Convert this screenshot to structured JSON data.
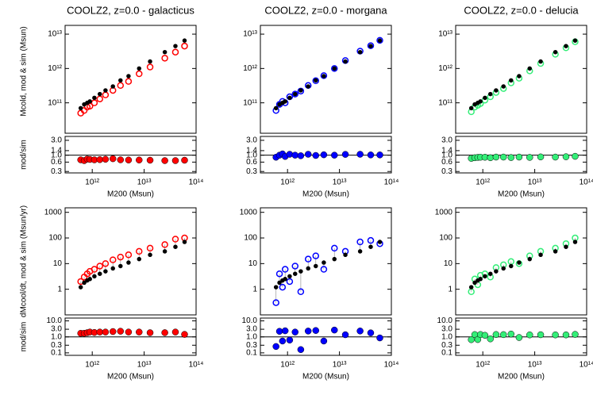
{
  "chart_data": [
    {
      "type": "scatter",
      "title": "COOLZ2, z=0.0 - galacticus",
      "ylabel": "Mcold, mod & sim (Msun)",
      "log_x": true,
      "log_y": true,
      "xlim": [
        300000000000.0,
        100000000000000.0
      ],
      "ylim": [
        13000000000.0,
        18000000000000.0
      ],
      "yticks": [
        {
          "value": 100000000000.0,
          "label": "10¹¹"
        },
        {
          "value": 1000000000000.0,
          "label": "10¹²"
        },
        {
          "value": 10000000000000.0,
          "label": "10¹³"
        }
      ],
      "x": [
        600000000000.0,
        700000000000.0,
        800000000000.0,
        900000000000.0,
        1100000000000.0,
        1400000000000.0,
        1800000000000.0,
        2500000000000.0,
        3500000000000.0,
        5000000000000.0,
        8000000000000.0,
        13000000000000.0,
        25000000000000.0,
        40000000000000.0,
        60000000000000.0
      ],
      "series": [
        {
          "color": "#ff0000",
          "marker": "open",
          "values": [
            50000000000.0,
            60000000000.0,
            75000000000.0,
            80000000000.0,
            100000000000.0,
            130000000000.0,
            170000000000.0,
            230000000000.0,
            320000000000.0,
            420000000000.0,
            700000000000.0,
            1100000000000.0,
            2000000000000.0,
            3000000000000.0,
            4500000000000.0
          ]
        },
        {
          "color": "#000000",
          "marker": "filled",
          "values": [
            70000000000.0,
            90000000000.0,
            100000000000.0,
            110000000000.0,
            140000000000.0,
            180000000000.0,
            230000000000.0,
            300000000000.0,
            450000000000.0,
            600000000000.0,
            1000000000000.0,
            1600000000000.0,
            3000000000000.0,
            4500000000000.0,
            6500000000000.0
          ]
        }
      ]
    },
    {
      "type": "scatter",
      "title": "COOLZ2, z=0.0 - morgana",
      "log_x": true,
      "log_y": true,
      "xlim": [
        300000000000.0,
        100000000000000.0
      ],
      "ylim": [
        13000000000.0,
        18000000000000.0
      ],
      "yticks": [
        {
          "value": 100000000000.0,
          "label": "10¹¹"
        },
        {
          "value": 1000000000000.0,
          "label": "10¹²"
        },
        {
          "value": 10000000000000.0,
          "label": "10¹³"
        }
      ],
      "x": [
        600000000000.0,
        700000000000.0,
        800000000000.0,
        900000000000.0,
        1100000000000.0,
        1400000000000.0,
        1800000000000.0,
        2500000000000.0,
        3500000000000.0,
        5000000000000.0,
        8000000000000.0,
        13000000000000.0,
        25000000000000.0,
        40000000000000.0,
        60000000000000.0
      ],
      "series": [
        {
          "color": "#0000ff",
          "marker": "open",
          "values": [
            60000000000.0,
            90000000000.0,
            110000000000.0,
            100000000000.0,
            150000000000.0,
            180000000000.0,
            220000000000.0,
            320000000000.0,
            440000000000.0,
            620000000000.0,
            1000000000000.0,
            1700000000000.0,
            3200000000000.0,
            4600000000000.0,
            6600000000000.0
          ]
        },
        {
          "color": "#000000",
          "marker": "filled",
          "values": [
            70000000000.0,
            90000000000.0,
            100000000000.0,
            110000000000.0,
            140000000000.0,
            180000000000.0,
            230000000000.0,
            300000000000.0,
            450000000000.0,
            600000000000.0,
            1000000000000.0,
            1600000000000.0,
            3000000000000.0,
            4500000000000.0,
            6500000000000.0
          ]
        }
      ]
    },
    {
      "type": "scatter",
      "title": "COOLZ2, z=0.0 - delucia",
      "log_x": true,
      "log_y": true,
      "xlim": [
        300000000000.0,
        100000000000000.0
      ],
      "ylim": [
        13000000000.0,
        18000000000000.0
      ],
      "yticks": [
        {
          "value": 100000000000.0,
          "label": "10¹¹"
        },
        {
          "value": 1000000000000.0,
          "label": "10¹²"
        },
        {
          "value": 10000000000000.0,
          "label": "10¹³"
        }
      ],
      "x": [
        600000000000.0,
        700000000000.0,
        800000000000.0,
        900000000000.0,
        1100000000000.0,
        1400000000000.0,
        1800000000000.0,
        2500000000000.0,
        3500000000000.0,
        5000000000000.0,
        8000000000000.0,
        13000000000000.0,
        25000000000000.0,
        40000000000000.0,
        60000000000000.0
      ],
      "series": [
        {
          "color": "#33ee77",
          "marker": "open",
          "values": [
            55000000000.0,
            75000000000.0,
            85000000000.0,
            95000000000.0,
            120000000000.0,
            150000000000.0,
            200000000000.0,
            260000000000.0,
            380000000000.0,
            520000000000.0,
            850000000000.0,
            1400000000000.0,
            2600000000000.0,
            4000000000000.0,
            6000000000000.0
          ]
        },
        {
          "color": "#000000",
          "marker": "filled",
          "values": [
            70000000000.0,
            90000000000.0,
            100000000000.0,
            110000000000.0,
            140000000000.0,
            180000000000.0,
            230000000000.0,
            300000000000.0,
            450000000000.0,
            600000000000.0,
            1000000000000.0,
            1600000000000.0,
            3000000000000.0,
            4500000000000.0,
            6500000000000.0
          ]
        }
      ]
    },
    {
      "type": "ratio",
      "ylabel": "mod/sim",
      "xlabel": "M200 (Msun)",
      "log_x": true,
      "log_y": true,
      "color": "#ff0000",
      "reference_line": 1,
      "xlim": [
        300000000000.0,
        100000000000000.0
      ],
      "ylim": [
        0.27,
        4
      ],
      "xticks": [
        {
          "value": 1000000000000.0,
          "label": "10¹²"
        },
        {
          "value": 10000000000000.0,
          "label": "10¹³"
        },
        {
          "value": 100000000000000.0,
          "label": "10¹⁴"
        }
      ],
      "yticks": [
        {
          "value": 0.3,
          "label": "0.3"
        },
        {
          "value": 0.6,
          "label": "0.6"
        },
        {
          "value": 1,
          "label": "1.0"
        },
        {
          "value": 1.4,
          "label": "1.4"
        },
        {
          "value": 3,
          "label": "3.0"
        }
      ],
      "x": [
        600000000000.0,
        700000000000.0,
        800000000000.0,
        900000000000.0,
        1100000000000.0,
        1400000000000.0,
        1800000000000.0,
        2500000000000.0,
        3500000000000.0,
        5000000000000.0,
        8000000000000.0,
        13000000000000.0,
        25000000000000.0,
        40000000000000.0,
        60000000000000.0
      ],
      "values": [
        0.71,
        0.67,
        0.75,
        0.73,
        0.71,
        0.72,
        0.74,
        0.77,
        0.71,
        0.7,
        0.7,
        0.69,
        0.67,
        0.67,
        0.69
      ]
    },
    {
      "type": "ratio",
      "xlabel": "M200 (Msun)",
      "log_x": true,
      "log_y": true,
      "color": "#0000ff",
      "reference_line": 1,
      "xlim": [
        300000000000.0,
        100000000000000.0
      ],
      "ylim": [
        0.27,
        4
      ],
      "xticks": [
        {
          "value": 1000000000000.0,
          "label": "10¹²"
        },
        {
          "value": 10000000000000.0,
          "label": "10¹³"
        },
        {
          "value": 100000000000000.0,
          "label": "10¹⁴"
        }
      ],
      "yticks": [
        {
          "value": 0.3,
          "label": "0.3"
        },
        {
          "value": 0.6,
          "label": "0.6"
        },
        {
          "value": 1,
          "label": "1.0"
        },
        {
          "value": 1.4,
          "label": "1.4"
        },
        {
          "value": 3,
          "label": "3.0"
        }
      ],
      "x": [
        600000000000.0,
        700000000000.0,
        800000000000.0,
        900000000000.0,
        1100000000000.0,
        1400000000000.0,
        1800000000000.0,
        2500000000000.0,
        3500000000000.0,
        5000000000000.0,
        8000000000000.0,
        13000000000000.0,
        25000000000000.0,
        40000000000000.0,
        60000000000000.0
      ],
      "values": [
        0.86,
        1,
        1.1,
        0.91,
        1.07,
        1,
        0.96,
        1.07,
        0.98,
        1.03,
        1,
        1.06,
        1.07,
        1.02,
        1.02
      ]
    },
    {
      "type": "ratio",
      "xlabel": "M200 (Msun)",
      "log_x": true,
      "log_y": true,
      "color": "#33ee77",
      "reference_line": 1,
      "xlim": [
        300000000000.0,
        100000000000000.0
      ],
      "ylim": [
        0.27,
        4
      ],
      "xticks": [
        {
          "value": 1000000000000.0,
          "label": "10¹²"
        },
        {
          "value": 10000000000000.0,
          "label": "10¹³"
        },
        {
          "value": 100000000000000.0,
          "label": "10¹⁴"
        }
      ],
      "yticks": [
        {
          "value": 0.3,
          "label": "0.3"
        },
        {
          "value": 0.6,
          "label": "0.6"
        },
        {
          "value": 1,
          "label": "1.0"
        },
        {
          "value": 1.4,
          "label": "1.4"
        },
        {
          "value": 3,
          "label": "3.0"
        }
      ],
      "x": [
        600000000000.0,
        700000000000.0,
        800000000000.0,
        900000000000.0,
        1100000000000.0,
        1400000000000.0,
        1800000000000.0,
        2500000000000.0,
        3500000000000.0,
        5000000000000.0,
        8000000000000.0,
        13000000000000.0,
        25000000000000.0,
        40000000000000.0,
        60000000000000.0
      ],
      "values": [
        0.79,
        0.83,
        0.85,
        0.86,
        0.86,
        0.83,
        0.87,
        0.87,
        0.84,
        0.87,
        0.85,
        0.88,
        0.87,
        0.89,
        0.92
      ]
    },
    {
      "type": "scatter",
      "ylabel": "dMcool/dt, mod & sim (Msun/yr)",
      "log_x": true,
      "log_y": true,
      "connectors": true,
      "xlim": [
        300000000000.0,
        100000000000000.0
      ],
      "ylim": [
        0.1,
        1500
      ],
      "yticks": [
        1,
        10,
        100,
        1000
      ],
      "x": [
        600000000000.0,
        700000000000.0,
        800000000000.0,
        900000000000.0,
        1100000000000.0,
        1400000000000.0,
        1800000000000.0,
        2500000000000.0,
        3500000000000.0,
        5000000000000.0,
        8000000000000.0,
        13000000000000.0,
        25000000000000.0,
        40000000000000.0,
        60000000000000.0
      ],
      "series": [
        {
          "color": "#ff0000",
          "marker": "open",
          "values": [
            2,
            3,
            4,
            5,
            6,
            8,
            10,
            14,
            18,
            22,
            30,
            40,
            55,
            90,
            100
          ]
        },
        {
          "color": "#000000",
          "marker": "filled",
          "values": [
            1.2,
            1.8,
            2.2,
            2.5,
            3.2,
            4,
            5,
            6.5,
            8,
            11,
            15,
            22,
            30,
            45,
            70
          ]
        }
      ]
    },
    {
      "type": "scatter",
      "log_x": true,
      "log_y": true,
      "connectors": true,
      "xlim": [
        300000000000.0,
        100000000000000.0
      ],
      "ylim": [
        0.1,
        1500
      ],
      "yticks": [
        1,
        10,
        100,
        1000
      ],
      "x": [
        600000000000.0,
        700000000000.0,
        800000000000.0,
        900000000000.0,
        1100000000000.0,
        1400000000000.0,
        1800000000000.0,
        2500000000000.0,
        3500000000000.0,
        5000000000000.0,
        8000000000000.0,
        13000000000000.0,
        25000000000000.0,
        40000000000000.0,
        60000000000000.0
      ],
      "series": [
        {
          "color": "#0000ff",
          "marker": "open",
          "values": [
            0.3,
            4,
            1.2,
            6,
            2,
            8,
            0.8,
            15,
            20,
            6,
            40,
            30,
            70,
            80,
            60
          ]
        },
        {
          "color": "#000000",
          "marker": "filled",
          "values": [
            1.2,
            1.8,
            2.2,
            2.5,
            3.2,
            4,
            5,
            6.5,
            8,
            11,
            15,
            22,
            30,
            45,
            70
          ]
        }
      ]
    },
    {
      "type": "scatter",
      "log_x": true,
      "log_y": true,
      "connectors": true,
      "xlim": [
        300000000000.0,
        100000000000000.0
      ],
      "ylim": [
        0.1,
        1500
      ],
      "yticks": [
        1,
        10,
        100,
        1000
      ],
      "x": [
        600000000000.0,
        700000000000.0,
        800000000000.0,
        900000000000.0,
        1100000000000.0,
        1400000000000.0,
        1800000000000.0,
        2500000000000.0,
        3500000000000.0,
        5000000000000.0,
        8000000000000.0,
        13000000000000.0,
        25000000000000.0,
        40000000000000.0,
        60000000000000.0
      ],
      "series": [
        {
          "color": "#33ee77",
          "marker": "open",
          "values": [
            0.8,
            2.5,
            1.5,
            3.5,
            4,
            3,
            7,
            9,
            12,
            10,
            20,
            30,
            40,
            60,
            100
          ]
        },
        {
          "color": "#000000",
          "marker": "filled",
          "values": [
            1.2,
            1.8,
            2.2,
            2.5,
            3.2,
            4,
            5,
            6.5,
            8,
            11,
            15,
            22,
            30,
            45,
            70
          ]
        }
      ]
    },
    {
      "type": "ratio",
      "ylabel": "mod/sim",
      "xlabel": "M200 (Msun)",
      "log_x": true,
      "log_y": true,
      "color": "#ff0000",
      "reference_line": 1,
      "xlim": [
        300000000000.0,
        100000000000000.0
      ],
      "ylim": [
        0.07,
        15
      ],
      "xticks": [
        {
          "value": 1000000000000.0,
          "label": "10¹²"
        },
        {
          "value": 10000000000000.0,
          "label": "10¹³"
        },
        {
          "value": 100000000000000.0,
          "label": "10¹⁴"
        }
      ],
      "yticks": [
        0.1,
        0.3,
        {
          "value": 1,
          "label": "1.0"
        },
        {
          "value": 3,
          "label": "3.0"
        },
        {
          "value": 10,
          "label": "10.0"
        }
      ],
      "x": [
        600000000000.0,
        700000000000.0,
        800000000000.0,
        900000000000.0,
        1100000000000.0,
        1400000000000.0,
        1800000000000.0,
        2500000000000.0,
        3500000000000.0,
        5000000000000.0,
        8000000000000.0,
        13000000000000.0,
        25000000000000.0,
        40000000000000.0,
        60000000000000.0
      ],
      "values": [
        1.67,
        1.67,
        1.82,
        2,
        1.88,
        2,
        2,
        2.15,
        2.25,
        2,
        2,
        1.82,
        1.83,
        2,
        1.43
      ]
    },
    {
      "type": "ratio",
      "xlabel": "M200 (Msun)",
      "log_x": true,
      "log_y": true,
      "color": "#0000ff",
      "reference_line": 1,
      "xlim": [
        300000000000.0,
        100000000000000.0
      ],
      "ylim": [
        0.07,
        15
      ],
      "xticks": [
        {
          "value": 1000000000000.0,
          "label": "10¹²"
        },
        {
          "value": 10000000000000.0,
          "label": "10¹³"
        },
        {
          "value": 100000000000000.0,
          "label": "10¹⁴"
        }
      ],
      "yticks": [
        0.1,
        0.3,
        {
          "value": 1,
          "label": "1.0"
        },
        {
          "value": 3,
          "label": "3.0"
        },
        {
          "value": 10,
          "label": "10.0"
        }
      ],
      "x": [
        600000000000.0,
        700000000000.0,
        800000000000.0,
        900000000000.0,
        1100000000000.0,
        1400000000000.0,
        1800000000000.0,
        2500000000000.0,
        3500000000000.0,
        5000000000000.0,
        8000000000000.0,
        13000000000000.0,
        25000000000000.0,
        40000000000000.0,
        60000000000000.0
      ],
      "values": [
        0.25,
        2.22,
        0.55,
        2.4,
        0.63,
        2,
        0.16,
        2.31,
        2.5,
        0.55,
        2.67,
        1.36,
        2.33,
        1.78,
        0.86
      ]
    },
    {
      "type": "ratio",
      "xlabel": "M200 (Msun)",
      "log_x": true,
      "log_y": true,
      "color": "#33ee77",
      "reference_line": 1,
      "xlim": [
        300000000000.0,
        100000000000000.0
      ],
      "ylim": [
        0.07,
        15
      ],
      "xticks": [
        {
          "value": 1000000000000.0,
          "label": "10¹²"
        },
        {
          "value": 10000000000000.0,
          "label": "10¹³"
        },
        {
          "value": 100000000000000.0,
          "label": "10¹⁴"
        }
      ],
      "yticks": [
        0.1,
        0.3,
        {
          "value": 1,
          "label": "1.0"
        },
        {
          "value": 3,
          "label": "3.0"
        },
        {
          "value": 10,
          "label": "10.0"
        }
      ],
      "x": [
        600000000000.0,
        700000000000.0,
        800000000000.0,
        900000000000.0,
        1100000000000.0,
        1400000000000.0,
        1800000000000.0,
        2500000000000.0,
        3500000000000.0,
        5000000000000.0,
        8000000000000.0,
        13000000000000.0,
        25000000000000.0,
        40000000000000.0,
        60000000000000.0
      ],
      "values": [
        0.67,
        1.39,
        0.68,
        1.4,
        1.25,
        0.75,
        1.4,
        1.38,
        1.5,
        0.91,
        1.33,
        1.36,
        1.33,
        1.33,
        1.43
      ]
    }
  ]
}
